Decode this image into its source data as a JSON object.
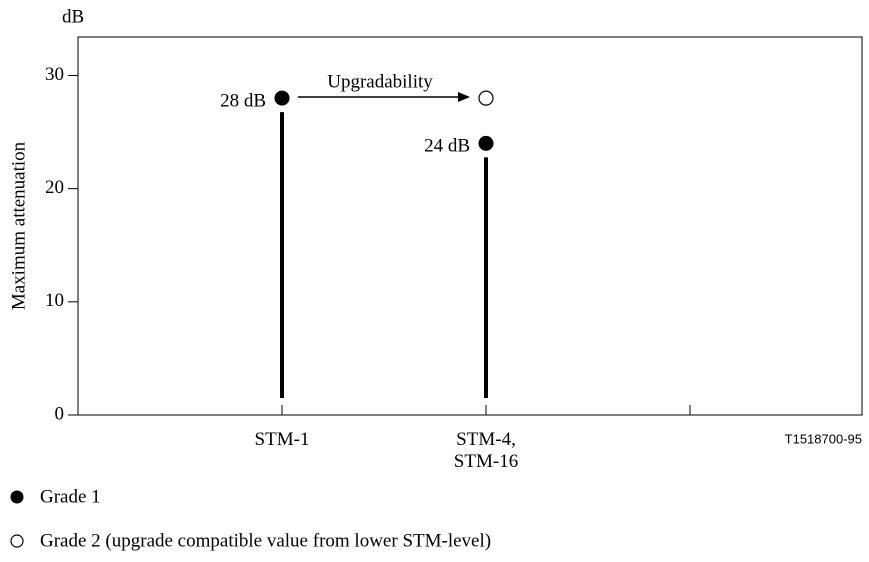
{
  "chart_data": {
    "type": "stem",
    "y_unit": "dB",
    "ylabel": "Maximum attenuation",
    "figure_id": "T1518700-95",
    "annotation": "Upgradability",
    "categories": [
      "STM-1",
      "STM-4, STM-16",
      null
    ],
    "series": [
      {
        "name": "Grade 1",
        "color": "#000000",
        "filled": true,
        "values": [
          28,
          24,
          null
        ],
        "value_labels": [
          "28 dB",
          "24 dB",
          null
        ]
      },
      {
        "name": "Grade 2 (upgrade compatible value from lower STM-level)",
        "color": "#000000",
        "filled": false,
        "values": [
          null,
          28,
          null
        ]
      }
    ],
    "ylim": [
      0,
      33.4
    ],
    "yticks": [
      0,
      10,
      20,
      30
    ]
  }
}
